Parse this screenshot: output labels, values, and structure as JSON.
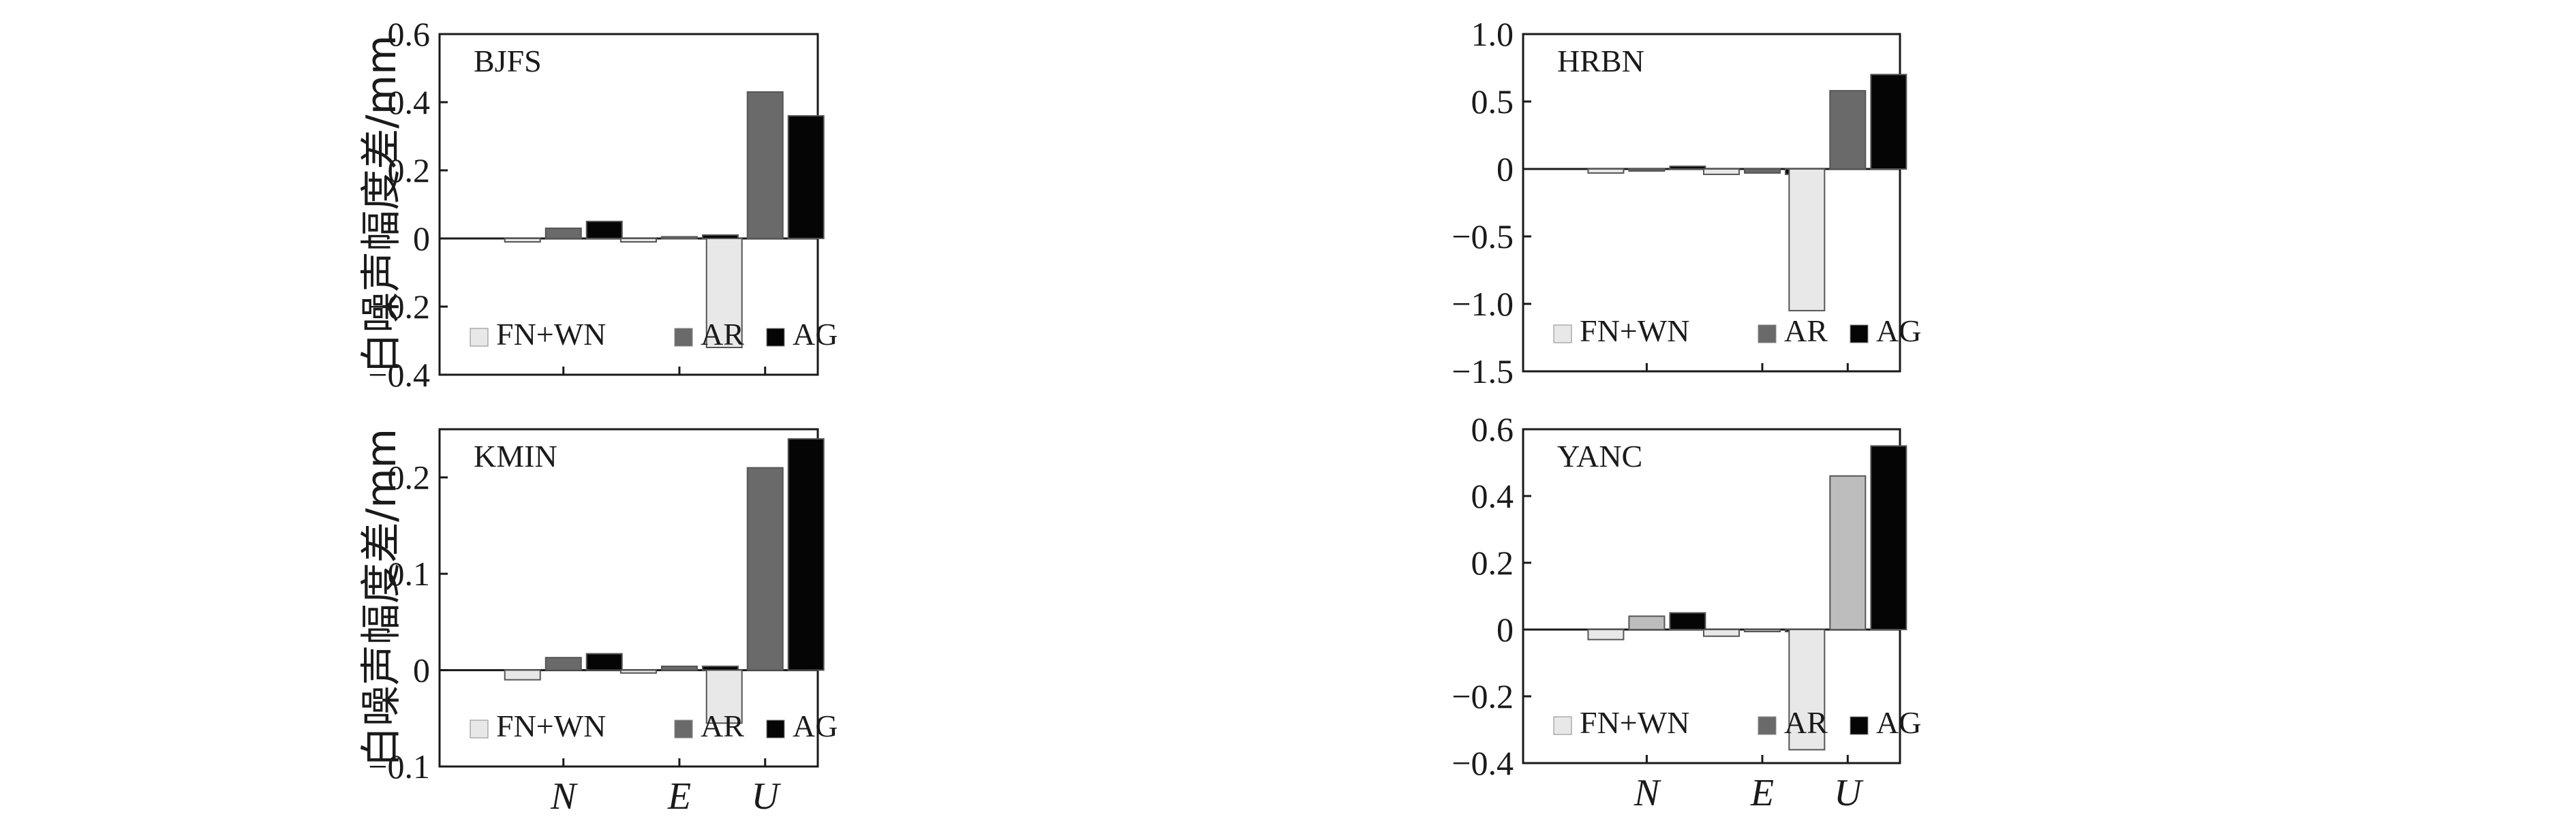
{
  "colors": {
    "FN+WN": "#e8e8e8",
    "AR": "#6a6a6a",
    "AG": "#050505",
    "AR_YANC": "#bdbdbd",
    "frame": "#1a1a1a"
  },
  "ylabel": "白噪声幅度差/mm",
  "chart_data": [
    {
      "type": "bar",
      "title": "BJFS",
      "categories": [
        "N",
        "E",
        "U"
      ],
      "series": [
        {
          "name": "FN+WN",
          "values": [
            -0.01,
            -0.01,
            -0.32
          ]
        },
        {
          "name": "AR",
          "values": [
            0.03,
            0.005,
            0.43
          ]
        },
        {
          "name": "AG",
          "values": [
            0.05,
            0.01,
            0.36
          ]
        }
      ],
      "ylim": [
        -0.4,
        0.6
      ],
      "yticks": [
        -0.4,
        -0.2,
        0,
        0.2,
        0.4,
        0.6
      ],
      "ytick_labels": [
        "−0.4",
        "−0.2",
        "0",
        "0.2",
        "0.4",
        "0.6"
      ],
      "legend": "bottom-left"
    },
    {
      "type": "bar",
      "title": "HRBN",
      "categories": [
        "N",
        "E",
        "U"
      ],
      "series": [
        {
          "name": "FN+WN",
          "values": [
            -0.03,
            -0.04,
            -1.05
          ]
        },
        {
          "name": "AR",
          "values": [
            0.0,
            -0.03,
            0.58
          ]
        },
        {
          "name": "AG",
          "values": [
            0.02,
            -0.04,
            0.7
          ]
        }
      ],
      "ylim": [
        -1.5,
        1.0
      ],
      "yticks": [
        -1.5,
        -1.0,
        -0.5,
        0,
        0.5,
        1.0
      ],
      "ytick_labels": [
        "−1.5",
        "−1.0",
        "−0.5",
        "0",
        "0.5",
        "1.0"
      ],
      "legend": "bottom-left"
    },
    {
      "type": "bar",
      "title": "KMIN",
      "categories": [
        "N",
        "E",
        "U"
      ],
      "series": [
        {
          "name": "FN+WN",
          "values": [
            -0.01,
            -0.003,
            -0.055
          ]
        },
        {
          "name": "AR",
          "values": [
            0.013,
            0.004,
            0.21
          ]
        },
        {
          "name": "AG",
          "values": [
            0.017,
            0.004,
            0.24
          ]
        }
      ],
      "ylim": [
        -0.1,
        0.25
      ],
      "yticks": [
        -0.1,
        0,
        0.1,
        0.2
      ],
      "ytick_labels": [
        "−0.1",
        "0",
        "0.1",
        "0.2"
      ],
      "legend": "bottom-left"
    },
    {
      "type": "bar",
      "title": "YANC",
      "categories": [
        "N",
        "E",
        "U"
      ],
      "series": [
        {
          "name": "FN+WN",
          "values": [
            -0.03,
            -0.02,
            -0.36
          ]
        },
        {
          "name": "AR",
          "values": [
            0.04,
            0.0,
            0.46
          ]
        },
        {
          "name": "AG",
          "values": [
            0.05,
            0.0,
            0.55
          ]
        }
      ],
      "ylim": [
        -0.4,
        0.6
      ],
      "yticks": [
        -0.4,
        -0.2,
        0,
        0.2,
        0.4,
        0.6
      ],
      "ytick_labels": [
        "−0.4",
        "−0.2",
        "0",
        "0.2",
        "0.4",
        "0.6"
      ],
      "legend": "bottom-left"
    }
  ]
}
